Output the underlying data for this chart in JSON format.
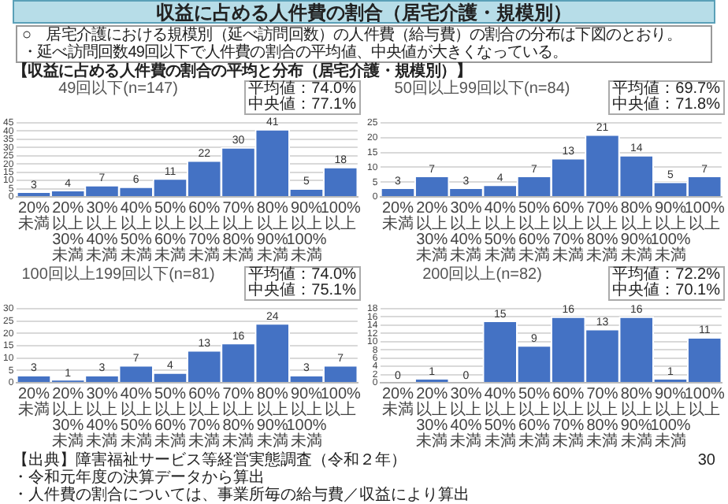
{
  "chart_data": [
    {
      "type": "other",
      "title": "収益に占める人件費の割合（居宅介護・規模別）",
      "subtitle": "【収益に占める人件費の割合の平均と分布（居宅介護・規模別）】",
      "annotations": [
        "○　居宅介護における規模別（延べ訪問回数）の人件費（給与費）の割合の分布は下図のとおり。",
        "・延べ訪問回数49回以下で人件費の割合の平均値、中央値が大きくなっている。"
      ]
    },
    {
      "type": "bar",
      "title": "49回以下(n=147)",
      "categories": [
        "20%未満",
        "20%以上\n30%未満",
        "30%以上\n40%未満",
        "40%以上\n50%未満",
        "50%以上\n60%未満",
        "60%以上\n70%未満",
        "70%以上\n80%未満",
        "80%以上\n90%未満",
        "90%以上\n100%未満",
        "100%以上"
      ],
      "values": [
        3,
        4,
        7,
        6,
        11,
        22,
        30,
        41,
        5,
        18
      ],
      "color": "#4472c4",
      "ylim": [
        0,
        45
      ],
      "yticks": [
        0,
        5,
        10,
        15,
        20,
        25,
        30,
        35,
        40,
        45
      ],
      "grid": "y",
      "data_labels": true,
      "legend": false,
      "annotations": [
        "平均値：74.0%",
        "中央値：77.1%"
      ]
    },
    {
      "type": "bar",
      "title": "50回以上99回以下(n=84)",
      "categories": [
        "20%未満",
        "20%以上\n30%未満",
        "30%以上\n40%未満",
        "40%以上\n50%未満",
        "50%以上\n60%未満",
        "60%以上\n70%未満",
        "70%以上\n80%未満",
        "80%以上\n90%未満",
        "90%以上\n100%未満",
        "100%以上"
      ],
      "values": [
        3,
        7,
        3,
        4,
        7,
        13,
        21,
        14,
        5,
        7
      ],
      "color": "#4472c4",
      "ylim": [
        0,
        25
      ],
      "yticks": [
        0,
        5,
        10,
        15,
        20,
        25
      ],
      "grid": "y",
      "data_labels": true,
      "legend": false,
      "annotations": [
        "平均値：69.7%",
        "中央値：71.8%"
      ]
    },
    {
      "type": "bar",
      "title": "100回以上199回以下(n=81)",
      "categories": [
        "20%未満",
        "20%以上\n30%未満",
        "30%以上\n40%未満",
        "40%以上\n50%未満",
        "50%以上\n60%未満",
        "60%以上\n70%未満",
        "70%以上\n80%未満",
        "80%以上\n90%未満",
        "90%以上\n100%未満",
        "100%以上"
      ],
      "values": [
        3,
        1,
        3,
        7,
        4,
        13,
        16,
        24,
        3,
        7
      ],
      "color": "#4472c4",
      "ylim": [
        0,
        30
      ],
      "yticks": [
        0,
        5,
        10,
        15,
        20,
        25,
        30
      ],
      "grid": "y",
      "data_labels": true,
      "legend": false,
      "annotations": [
        "平均値：74.0%",
        "中央値：75.1%"
      ]
    },
    {
      "type": "bar",
      "title": "200回以上(n=82)",
      "categories": [
        "20%未満",
        "20%以上\n30%未満",
        "30%以上\n40%未満",
        "40%以上\n50%未満",
        "50%以上\n60%未満",
        "60%以上\n70%未満",
        "70%以上\n80%未満",
        "80%以上\n90%未満",
        "90%以上\n100%未満",
        "100%以上"
      ],
      "values": [
        0,
        1,
        0,
        15,
        9,
        16,
        13,
        16,
        1,
        11
      ],
      "color": "#4472c4",
      "ylim": [
        0,
        18
      ],
      "yticks": [
        0,
        2,
        4,
        6,
        8,
        10,
        12,
        14,
        16,
        18
      ],
      "grid": "y",
      "data_labels": true,
      "legend": false,
      "annotations": [
        "平均値：72.2%",
        "中央値：70.1%"
      ]
    },
    {
      "type": "other",
      "annotations": [
        "【出典】障害福祉サービス等経営実態調査（令和２年）",
        "・令和元年度の決算データから算出",
        "・人件費の割合については、事業所毎の給与費／収益により算出",
        "30"
      ]
    }
  ]
}
